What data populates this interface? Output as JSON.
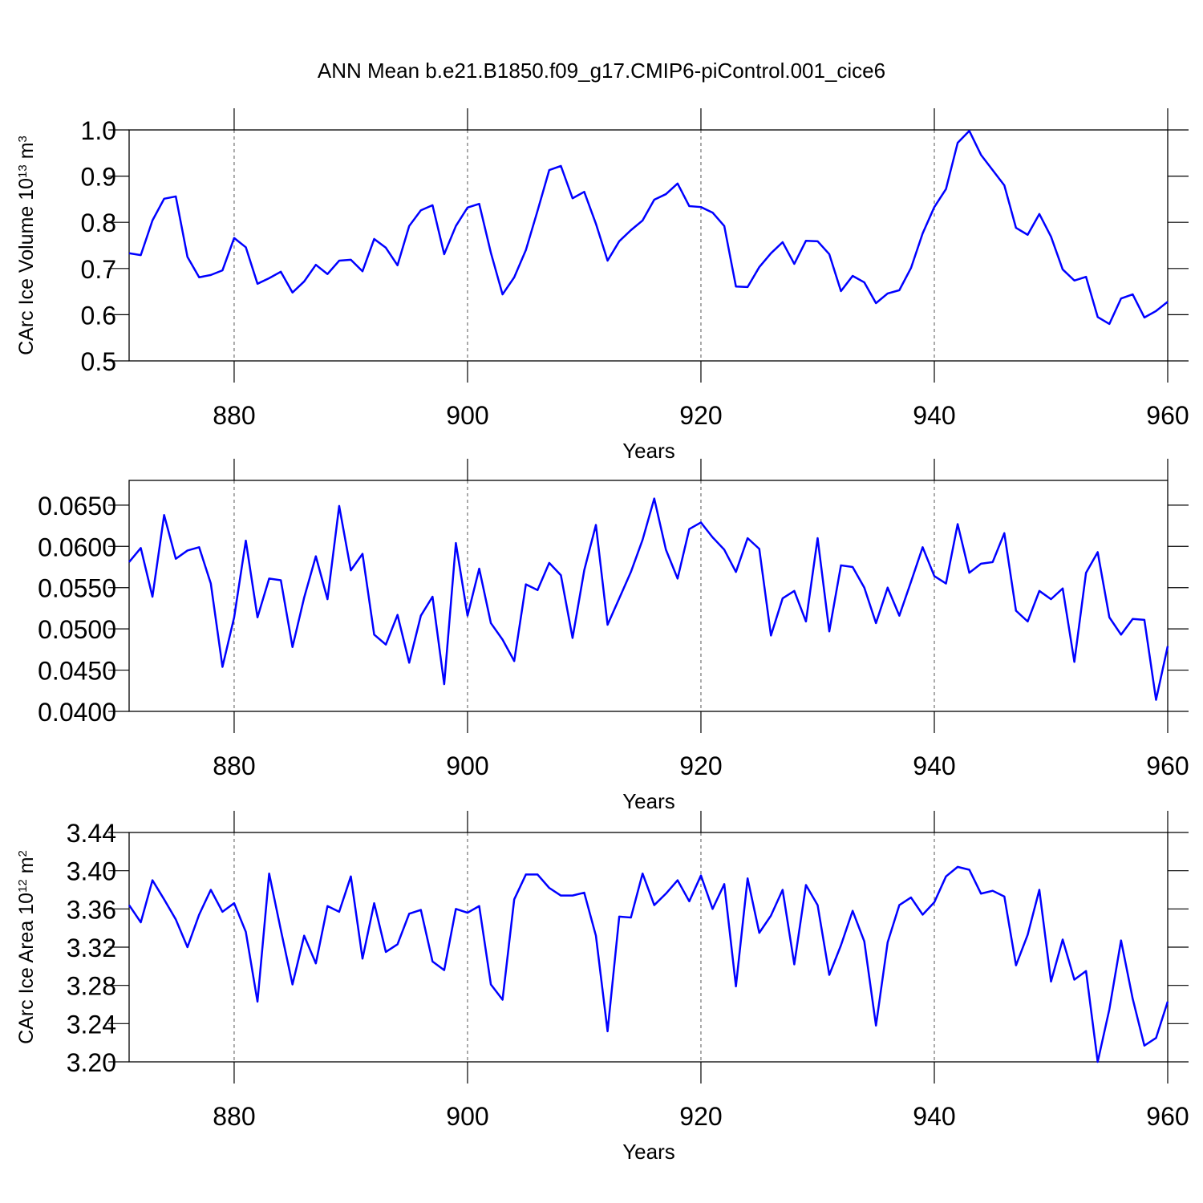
{
  "chart_data": [
    {
      "type": "line",
      "title": "ANN Mean b.e21.B1850.f09_g17.CMIP6-piControl.001_cice6",
      "xlabel": "Years",
      "ylabel_parts": [
        "CArc Ice Volume 10",
        "13",
        " m",
        "3"
      ],
      "xlim": [
        871,
        960
      ],
      "xticks": [
        880,
        900,
        920,
        940,
        960
      ],
      "ylim": [
        0.5,
        1.0
      ],
      "yticks": [
        {
          "value": 1,
          "label": "1.0"
        },
        0.9,
        0.8,
        0.7,
        0.6,
        0.5
      ],
      "grid": true,
      "color": "#0000ff",
      "x": [
        871,
        872,
        873,
        874,
        875,
        876,
        877,
        878,
        879,
        880,
        881,
        882,
        883,
        884,
        885,
        886,
        887,
        888,
        889,
        890,
        891,
        892,
        893,
        894,
        895,
        896,
        897,
        898,
        899,
        900,
        901,
        902,
        903,
        904,
        905,
        906,
        907,
        908,
        909,
        910,
        911,
        912,
        913,
        914,
        915,
        916,
        917,
        918,
        919,
        920,
        921,
        922,
        923,
        924,
        925,
        926,
        927,
        928,
        929,
        930,
        931,
        932,
        933,
        934,
        935,
        936,
        937,
        938,
        939,
        940,
        941,
        942,
        943,
        944,
        945,
        946,
        947,
        948,
        949,
        950,
        951,
        952,
        953,
        954,
        955,
        956,
        957,
        958,
        959,
        960
      ],
      "values": [
        0.733,
        0.729,
        0.804,
        0.851,
        0.856,
        0.725,
        0.681,
        0.686,
        0.696,
        0.766,
        0.746,
        0.667,
        0.679,
        0.693,
        0.648,
        0.672,
        0.708,
        0.688,
        0.717,
        0.719,
        0.694,
        0.764,
        0.745,
        0.707,
        0.792,
        0.826,
        0.837,
        0.731,
        0.792,
        0.832,
        0.84,
        0.734,
        0.644,
        0.681,
        0.74,
        0.825,
        0.913,
        0.922,
        0.852,
        0.866,
        0.797,
        0.717,
        0.759,
        0.783,
        0.804,
        0.849,
        0.861,
        0.884,
        0.835,
        0.833,
        0.821,
        0.792,
        0.661,
        0.66,
        0.703,
        0.733,
        0.757,
        0.71,
        0.76,
        0.759,
        0.731,
        0.651,
        0.684,
        0.67,
        0.625,
        0.646,
        0.653,
        0.701,
        0.776,
        0.833,
        0.872,
        0.972,
        0.998,
        0.946,
        0.913,
        0.88,
        0.788,
        0.773,
        0.818,
        0.769,
        0.698,
        0.674,
        0.682,
        0.595,
        0.58,
        0.635,
        0.644,
        0.594,
        0.608,
        0.628
      ]
    },
    {
      "type": "line",
      "xlabel": "Years",
      "xlim": [
        871,
        960
      ],
      "xticks": [
        880,
        900,
        920,
        940,
        960
      ],
      "ylim": [
        0.04,
        0.068
      ],
      "yticks": [
        {
          "value": 0.065,
          "label": "0.0650"
        },
        {
          "value": 0.06,
          "label": "0.0600"
        },
        {
          "value": 0.055,
          "label": "0.0550"
        },
        {
          "value": 0.05,
          "label": "0.0500"
        },
        {
          "value": 0.045,
          "label": "0.0450"
        },
        {
          "value": 0.04,
          "label": "0.0400"
        }
      ],
      "grid": true,
      "color": "#0000ff",
      "x": [
        871,
        872,
        873,
        874,
        875,
        876,
        877,
        878,
        879,
        880,
        881,
        882,
        883,
        884,
        885,
        886,
        887,
        888,
        889,
        890,
        891,
        892,
        893,
        894,
        895,
        896,
        897,
        898,
        899,
        900,
        901,
        902,
        903,
        904,
        905,
        906,
        907,
        908,
        909,
        910,
        911,
        912,
        913,
        914,
        915,
        916,
        917,
        918,
        919,
        920,
        921,
        922,
        923,
        924,
        925,
        926,
        927,
        928,
        929,
        930,
        931,
        932,
        933,
        934,
        935,
        936,
        937,
        938,
        939,
        940,
        941,
        942,
        943,
        944,
        945,
        946,
        947,
        948,
        949,
        950,
        951,
        952,
        953,
        954,
        955,
        956,
        957,
        958,
        959,
        960
      ],
      "values": [
        0.0581,
        0.0598,
        0.0539,
        0.0638,
        0.0585,
        0.0595,
        0.0599,
        0.0555,
        0.0454,
        0.0514,
        0.0607,
        0.0514,
        0.0561,
        0.0559,
        0.0478,
        0.0538,
        0.0588,
        0.0536,
        0.0649,
        0.0571,
        0.0591,
        0.0493,
        0.0481,
        0.0517,
        0.0459,
        0.0516,
        0.0539,
        0.0433,
        0.0604,
        0.0516,
        0.0573,
        0.0507,
        0.0487,
        0.0461,
        0.0554,
        0.0547,
        0.058,
        0.0565,
        0.0489,
        0.0571,
        0.0626,
        0.0505,
        0.0537,
        0.0569,
        0.0608,
        0.0658,
        0.0596,
        0.0561,
        0.0621,
        0.0629,
        0.0611,
        0.0596,
        0.0569,
        0.061,
        0.0597,
        0.0492,
        0.0537,
        0.0546,
        0.0509,
        0.061,
        0.0497,
        0.0577,
        0.0575,
        0.055,
        0.0507,
        0.055,
        0.0516,
        0.0557,
        0.0599,
        0.0564,
        0.0555,
        0.0627,
        0.0568,
        0.0579,
        0.0581,
        0.0616,
        0.0522,
        0.0509,
        0.0546,
        0.0536,
        0.0549,
        0.046,
        0.0568,
        0.0593,
        0.0514,
        0.0493,
        0.0512,
        0.0511,
        0.0414,
        0.0479
      ]
    },
    {
      "type": "line",
      "xlabel": "Years",
      "ylabel_parts": [
        "CArc Ice Area 10",
        "12",
        " m",
        "2"
      ],
      "xlim": [
        871,
        960
      ],
      "xticks": [
        880,
        900,
        920,
        940,
        960
      ],
      "ylim": [
        3.2,
        3.44
      ],
      "yticks": [
        3.44,
        {
          "value": 3.4,
          "label": "3.40"
        },
        3.36,
        3.32,
        3.28,
        3.24,
        {
          "value": 3.2,
          "label": "3.20"
        }
      ],
      "grid": true,
      "color": "#0000ff",
      "x": [
        871,
        872,
        873,
        874,
        875,
        876,
        877,
        878,
        879,
        880,
        881,
        882,
        883,
        884,
        885,
        886,
        887,
        888,
        889,
        890,
        891,
        892,
        893,
        894,
        895,
        896,
        897,
        898,
        899,
        900,
        901,
        902,
        903,
        904,
        905,
        906,
        907,
        908,
        909,
        910,
        911,
        912,
        913,
        914,
        915,
        916,
        917,
        918,
        919,
        920,
        921,
        922,
        923,
        924,
        925,
        926,
        927,
        928,
        929,
        930,
        931,
        932,
        933,
        934,
        935,
        936,
        937,
        938,
        939,
        940,
        941,
        942,
        943,
        944,
        945,
        946,
        947,
        948,
        949,
        950,
        951,
        952,
        953,
        954,
        955,
        956,
        957,
        958,
        959,
        960
      ],
      "values": [
        3.364,
        3.346,
        3.39,
        3.37,
        3.349,
        3.32,
        3.354,
        3.38,
        3.357,
        3.366,
        3.336,
        3.263,
        3.397,
        3.338,
        3.281,
        3.332,
        3.303,
        3.363,
        3.357,
        3.394,
        3.308,
        3.366,
        3.315,
        3.323,
        3.355,
        3.359,
        3.305,
        3.296,
        3.36,
        3.356,
        3.363,
        3.281,
        3.265,
        3.37,
        3.396,
        3.396,
        3.382,
        3.374,
        3.374,
        3.377,
        3.332,
        3.232,
        3.352,
        3.351,
        3.397,
        3.364,
        3.376,
        3.39,
        3.368,
        3.395,
        3.36,
        3.386,
        3.279,
        3.392,
        3.335,
        3.353,
        3.38,
        3.302,
        3.385,
        3.364,
        3.291,
        3.322,
        3.358,
        3.326,
        3.238,
        3.325,
        3.364,
        3.372,
        3.354,
        3.367,
        3.394,
        3.404,
        3.401,
        3.376,
        3.379,
        3.373,
        3.301,
        3.333,
        3.38,
        3.284,
        3.328,
        3.286,
        3.295,
        3.2,
        3.255,
        3.327,
        3.266,
        3.217,
        3.225,
        3.263
      ]
    }
  ]
}
